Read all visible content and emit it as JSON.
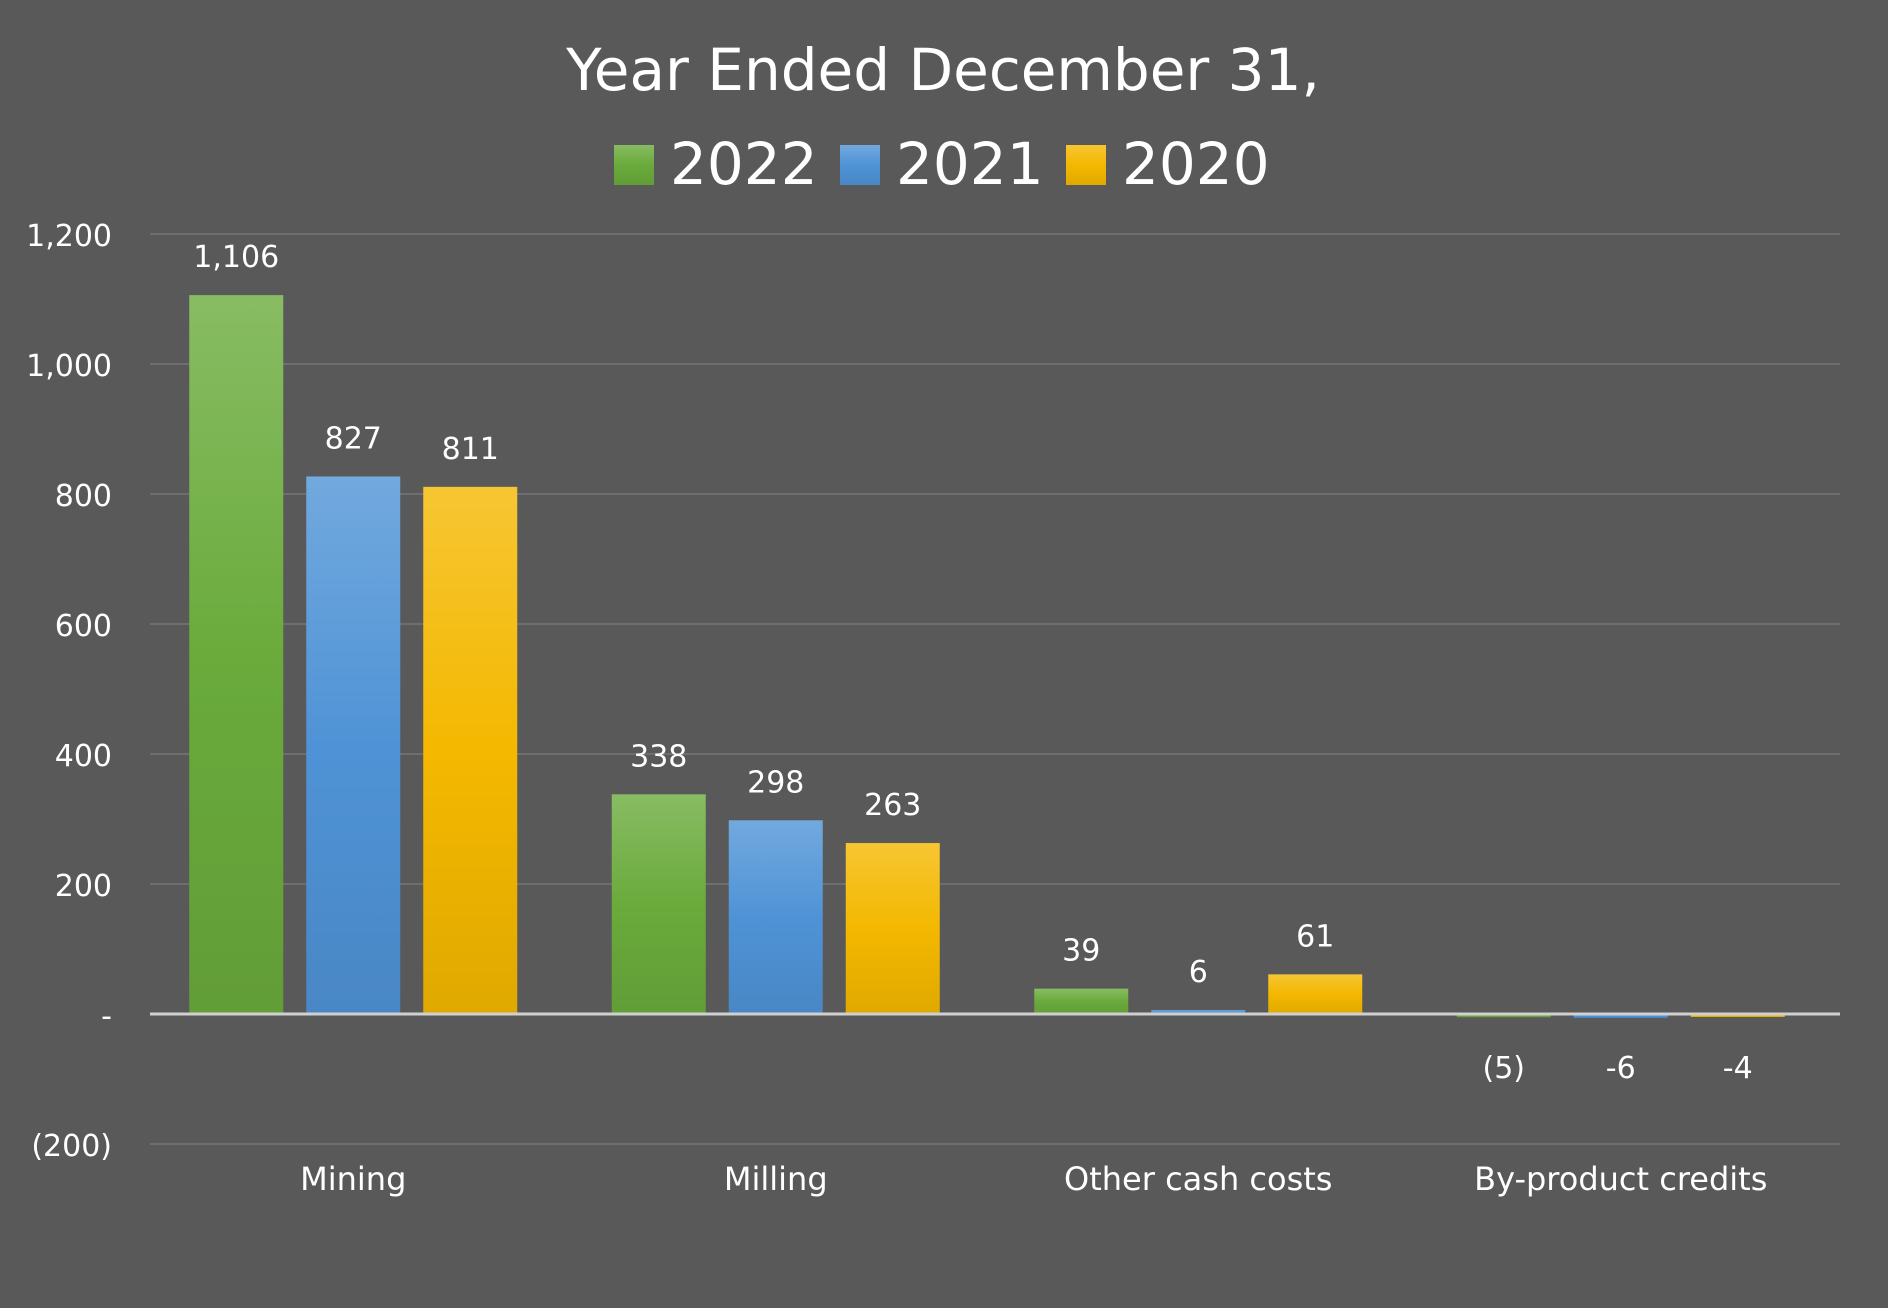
{
  "chart_data": {
    "type": "bar",
    "title": "Year Ended December 31,",
    "categories": [
      "Mining",
      "Milling",
      "Other cash costs",
      "By-product credits"
    ],
    "series": [
      {
        "name": "2022",
        "color": "#6aab3c",
        "values": [
          1106,
          338,
          39,
          -5
        ],
        "labels": [
          "1,106",
          "338",
          "39",
          "(5)"
        ]
      },
      {
        "name": "2021",
        "color": "#4f93d6",
        "values": [
          827,
          298,
          6,
          -6
        ],
        "labels": [
          "827",
          "298",
          "6",
          "-6"
        ]
      },
      {
        "name": "2020",
        "color": "#f4b800",
        "values": [
          811,
          263,
          61,
          -4
        ],
        "labels": [
          "811",
          "263",
          "61",
          "-4"
        ]
      }
    ],
    "y_ticks": [
      {
        "value": 1200,
        "label": "1,200"
      },
      {
        "value": 1000,
        "label": "1,000"
      },
      {
        "value": 800,
        "label": "800"
      },
      {
        "value": 600,
        "label": "600"
      },
      {
        "value": 400,
        "label": "400"
      },
      {
        "value": 200,
        "label": "200"
      },
      {
        "value": 0,
        "label": "-"
      },
      {
        "value": -200,
        "label": "(200)"
      }
    ],
    "ylim": [
      -200,
      1200
    ],
    "legend_position": "top",
    "grid": true,
    "colors": {
      "background": "#595959",
      "gridline": "#6e6e6e",
      "axis": "#d0d0d0",
      "text": "#ffffff"
    }
  }
}
